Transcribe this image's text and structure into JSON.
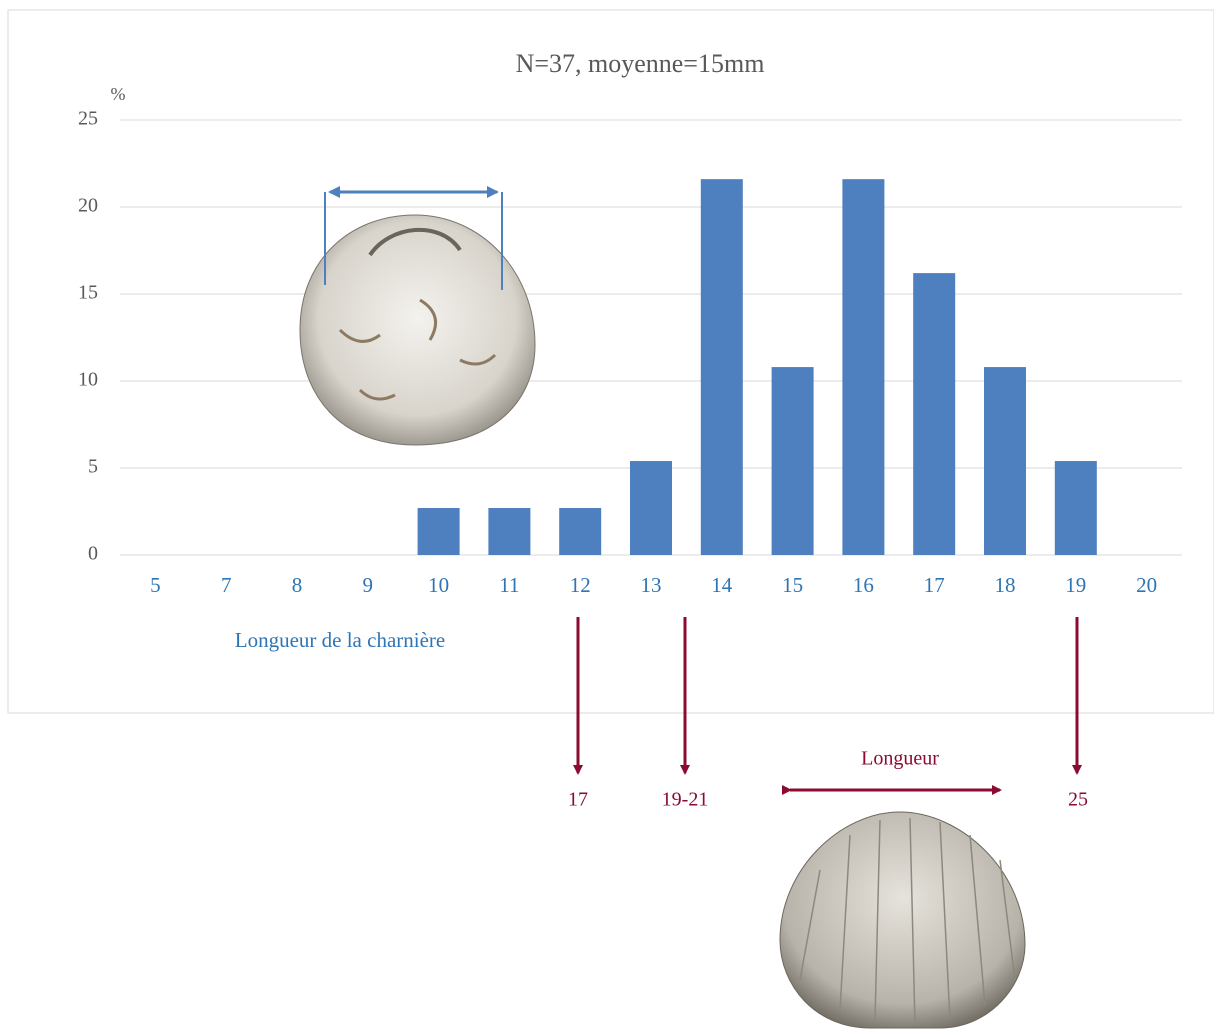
{
  "chart_data": {
    "type": "bar",
    "title": "N=37, moyenne=15mm",
    "y_label": "%",
    "x_label": "Longueur  de la charnière",
    "categories": [
      "5",
      "7",
      "8",
      "9",
      "10",
      "11",
      "12",
      "13",
      "14",
      "15",
      "16",
      "17",
      "18",
      "19",
      "20"
    ],
    "values": [
      0,
      0,
      0,
      0,
      2.7,
      2.7,
      2.7,
      5.4,
      21.6,
      10.8,
      21.6,
      16.2,
      10.8,
      5.4,
      0
    ],
    "color": "#4e7fbf",
    "ylim": [
      0,
      25
    ],
    "yticks": [
      0,
      5,
      10,
      15,
      20,
      25
    ],
    "grid": true,
    "length_label": "Longueur",
    "length_values": [
      "17",
      "19-21",
      "25"
    ]
  }
}
